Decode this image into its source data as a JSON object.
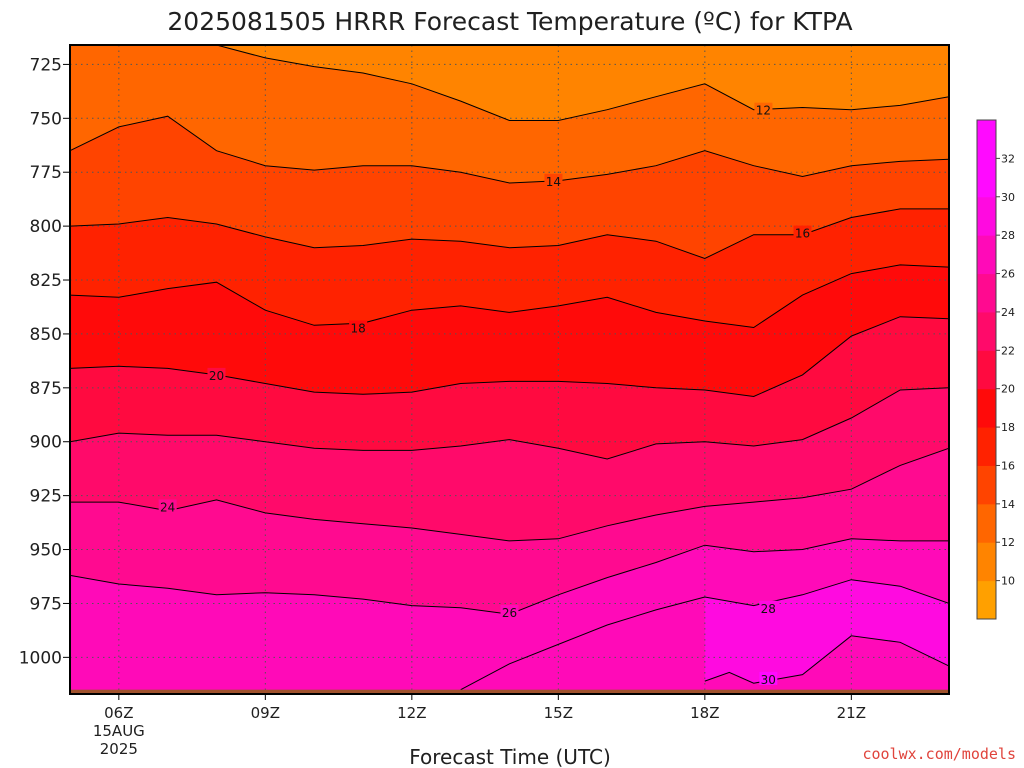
{
  "chart_data": {
    "type": "heatmap",
    "title": "2025081505 HRRR Forecast Temperature (ºC) for KTPA",
    "xlabel": "Forecast Time (UTC)",
    "ylabel": "",
    "x_ticks": [
      "06Z",
      "09Z",
      "12Z",
      "15Z",
      "18Z",
      "21Z"
    ],
    "x_tick_sub": [
      "15AUG",
      "2025"
    ],
    "xlim": [
      5,
      23
    ],
    "y_ticks": [
      725,
      750,
      775,
      800,
      825,
      850,
      875,
      900,
      925,
      950,
      975,
      1000
    ],
    "ylim": [
      1017,
      716
    ],
    "y_axis": "pressure (hPa), inverted",
    "grid": true,
    "surface_pressure": 1015,
    "colorbar": {
      "levels": [
        10,
        12,
        14,
        16,
        18,
        20,
        22,
        24,
        26,
        28,
        30,
        32
      ],
      "labels": [
        "10",
        "12",
        "14",
        "16",
        "18",
        "20",
        "22",
        "24",
        "26",
        "28",
        "30",
        "32"
      ],
      "colors": [
        "#ffa000",
        "#ff8400",
        "#ff6600",
        "#ff4400",
        "#ff2200",
        "#ff0a0a",
        "#ff0a40",
        "#ff0a6a",
        "#ff0a90",
        "#ff0ab8",
        "#ff0ae0",
        "#ff0aff",
        "#ff0aff"
      ]
    },
    "contours": [
      {
        "level": 12,
        "label": "12",
        "label_at": [
          19.2,
          746
        ],
        "points": [
          [
            8,
            716
          ],
          [
            9,
            722
          ],
          [
            10,
            726
          ],
          [
            11,
            729
          ],
          [
            12,
            734
          ],
          [
            13,
            742
          ],
          [
            14,
            751
          ],
          [
            15,
            751
          ],
          [
            16,
            746
          ],
          [
            17,
            740
          ],
          [
            18,
            734
          ],
          [
            19,
            746
          ],
          [
            20,
            745
          ],
          [
            21,
            746
          ],
          [
            22,
            744
          ],
          [
            23,
            740
          ]
        ]
      },
      {
        "level": 14,
        "label": "14",
        "label_at": [
          14.9,
          779
        ],
        "points": [
          [
            5,
            765
          ],
          [
            6,
            754
          ],
          [
            7,
            749
          ],
          [
            8,
            765
          ],
          [
            9,
            772
          ],
          [
            10,
            774
          ],
          [
            11,
            772
          ],
          [
            12,
            772
          ],
          [
            13,
            775
          ],
          [
            14,
            780
          ],
          [
            15,
            779
          ],
          [
            16,
            776
          ],
          [
            17,
            772
          ],
          [
            18,
            765
          ],
          [
            19,
            772
          ],
          [
            20,
            777
          ],
          [
            21,
            772
          ],
          [
            22,
            770
          ],
          [
            23,
            769
          ]
        ]
      },
      {
        "level": 16,
        "label": "16",
        "label_at": [
          20.0,
          803
        ],
        "points": [
          [
            5,
            800
          ],
          [
            6,
            799
          ],
          [
            7,
            796
          ],
          [
            8,
            799
          ],
          [
            9,
            805
          ],
          [
            10,
            810
          ],
          [
            11,
            809
          ],
          [
            12,
            806
          ],
          [
            13,
            807
          ],
          [
            14,
            810
          ],
          [
            15,
            809
          ],
          [
            16,
            804
          ],
          [
            17,
            807
          ],
          [
            18,
            815
          ],
          [
            19,
            804
          ],
          [
            20,
            804
          ],
          [
            21,
            796
          ],
          [
            22,
            792
          ],
          [
            23,
            792
          ]
        ]
      },
      {
        "level": 18,
        "label": "18",
        "label_at": [
          10.9,
          847
        ],
        "points": [
          [
            5,
            832
          ],
          [
            6,
            833
          ],
          [
            7,
            829
          ],
          [
            8,
            826
          ],
          [
            9,
            839
          ],
          [
            10,
            846
          ],
          [
            11,
            845
          ],
          [
            12,
            839
          ],
          [
            13,
            837
          ],
          [
            14,
            840
          ],
          [
            15,
            837
          ],
          [
            16,
            833
          ],
          [
            17,
            840
          ],
          [
            18,
            844
          ],
          [
            19,
            847
          ],
          [
            20,
            832
          ],
          [
            21,
            822
          ],
          [
            22,
            818
          ],
          [
            23,
            819
          ]
        ]
      },
      {
        "level": 20,
        "label": "20",
        "label_at": [
          8.0,
          869
        ],
        "points": [
          [
            5,
            866
          ],
          [
            6,
            865
          ],
          [
            7,
            866
          ],
          [
            8,
            869
          ],
          [
            9,
            873
          ],
          [
            10,
            877
          ],
          [
            11,
            878
          ],
          [
            12,
            877
          ],
          [
            13,
            873
          ],
          [
            14,
            872
          ],
          [
            15,
            872
          ],
          [
            16,
            873
          ],
          [
            17,
            875
          ],
          [
            18,
            876
          ],
          [
            19,
            879
          ],
          [
            20,
            869
          ],
          [
            21,
            851
          ],
          [
            22,
            842
          ],
          [
            23,
            843
          ]
        ]
      },
      {
        "level": 22,
        "label": "",
        "label_at": null,
        "points": [
          [
            5,
            900
          ],
          [
            6,
            896
          ],
          [
            7,
            897
          ],
          [
            8,
            897
          ],
          [
            9,
            900
          ],
          [
            10,
            903
          ],
          [
            11,
            904
          ],
          [
            12,
            904
          ],
          [
            13,
            902
          ],
          [
            14,
            899
          ],
          [
            15,
            903
          ],
          [
            16,
            908
          ],
          [
            17,
            901
          ],
          [
            18,
            900
          ],
          [
            19,
            902
          ],
          [
            20,
            899
          ],
          [
            21,
            889
          ],
          [
            22,
            876
          ],
          [
            23,
            875
          ]
        ]
      },
      {
        "level": 24,
        "label": "24",
        "label_at": [
          7.0,
          930
        ],
        "points": [
          [
            5,
            928
          ],
          [
            6,
            928
          ],
          [
            7,
            932
          ],
          [
            8,
            927
          ],
          [
            9,
            933
          ],
          [
            10,
            936
          ],
          [
            11,
            938
          ],
          [
            12,
            940
          ],
          [
            13,
            943
          ],
          [
            14,
            946
          ],
          [
            15,
            945
          ],
          [
            16,
            939
          ],
          [
            17,
            934
          ],
          [
            18,
            930
          ],
          [
            19,
            928
          ],
          [
            20,
            926
          ],
          [
            21,
            922
          ],
          [
            22,
            911
          ],
          [
            23,
            903
          ]
        ]
      },
      {
        "level": 26,
        "label": "26",
        "label_at": [
          14.0,
          979
        ],
        "points": [
          [
            5,
            962
          ],
          [
            6,
            966
          ],
          [
            7,
            968
          ],
          [
            8,
            971
          ],
          [
            9,
            970
          ],
          [
            10,
            971
          ],
          [
            11,
            973
          ],
          [
            12,
            976
          ],
          [
            13,
            977
          ],
          [
            14,
            980
          ],
          [
            15,
            971
          ],
          [
            16,
            963
          ],
          [
            17,
            956
          ],
          [
            18,
            948
          ],
          [
            19,
            951
          ],
          [
            20,
            950
          ],
          [
            21,
            945
          ],
          [
            22,
            946
          ],
          [
            23,
            946
          ]
        ]
      },
      {
        "level": 28,
        "label": "28",
        "label_at": [
          19.3,
          977
        ],
        "points": [
          [
            13,
            1015
          ],
          [
            14,
            1003
          ],
          [
            15,
            994
          ],
          [
            16,
            985
          ],
          [
            17,
            978
          ],
          [
            18,
            972
          ],
          [
            19,
            976
          ],
          [
            20,
            971
          ],
          [
            21,
            964
          ],
          [
            22,
            967
          ],
          [
            23,
            975
          ]
        ]
      },
      {
        "level": 30,
        "label": "30",
        "label_at": [
          19.3,
          1010
        ],
        "points": [
          [
            18,
            1011
          ],
          [
            18.5,
            1007
          ],
          [
            19,
            1012
          ],
          [
            20,
            1008
          ],
          [
            21,
            990
          ],
          [
            22,
            993
          ],
          [
            23,
            1004
          ]
        ]
      }
    ]
  },
  "credit": "coolwx.com/models"
}
